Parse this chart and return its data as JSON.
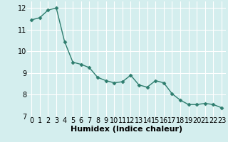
{
  "x": [
    0,
    1,
    2,
    3,
    4,
    5,
    6,
    7,
    8,
    9,
    10,
    11,
    12,
    13,
    14,
    15,
    16,
    17,
    18,
    19,
    20,
    21,
    22,
    23
  ],
  "y": [
    11.45,
    11.55,
    11.9,
    12.0,
    10.45,
    9.5,
    9.4,
    9.25,
    8.8,
    8.65,
    8.55,
    8.6,
    8.9,
    8.45,
    8.35,
    8.65,
    8.55,
    8.05,
    7.75,
    7.55,
    7.55,
    7.6,
    7.55,
    7.4
  ],
  "line_color": "#2e7d6e",
  "marker": "D",
  "marker_size": 2.5,
  "line_width": 1.0,
  "xlabel": "Humidex (Indice chaleur)",
  "xlim": [
    -0.5,
    23.5
  ],
  "ylim": [
    7,
    12.3
  ],
  "yticks": [
    7,
    8,
    9,
    10,
    11,
    12
  ],
  "xticks": [
    0,
    1,
    2,
    3,
    4,
    5,
    6,
    7,
    8,
    9,
    10,
    11,
    12,
    13,
    14,
    15,
    16,
    17,
    18,
    19,
    20,
    21,
    22,
    23
  ],
  "bg_color": "#d4eeee",
  "grid_color": "#ffffff",
  "tick_label_fontsize": 7,
  "xlabel_fontsize": 8,
  "xlabel_fontweight": "bold"
}
